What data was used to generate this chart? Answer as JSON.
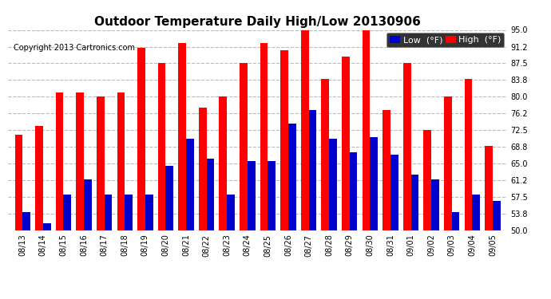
{
  "title": "Outdoor Temperature Daily High/Low 20130906",
  "copyright": "Copyright 2013 Cartronics.com",
  "legend_low": "Low  (°F)",
  "legend_high": "High  (°F)",
  "dates": [
    "08/13",
    "08/14",
    "08/15",
    "08/16",
    "08/17",
    "08/18",
    "08/19",
    "08/20",
    "08/21",
    "08/22",
    "08/23",
    "08/24",
    "08/25",
    "08/26",
    "08/27",
    "08/28",
    "08/29",
    "08/30",
    "08/31",
    "09/01",
    "09/02",
    "09/03",
    "09/04",
    "09/05"
  ],
  "highs": [
    71.5,
    73.5,
    81.0,
    81.0,
    80.0,
    81.0,
    91.0,
    87.5,
    92.0,
    77.5,
    80.0,
    87.5,
    92.0,
    90.5,
    95.0,
    84.0,
    89.0,
    95.0,
    77.0,
    87.5,
    72.5,
    80.0,
    84.0,
    69.0
  ],
  "lows": [
    54.0,
    51.5,
    58.0,
    61.5,
    58.0,
    58.0,
    58.0,
    64.5,
    70.5,
    66.0,
    58.0,
    65.5,
    65.5,
    74.0,
    77.0,
    70.5,
    67.5,
    71.0,
    67.0,
    62.5,
    61.5,
    54.0,
    58.0,
    56.5
  ],
  "ylim": [
    50.0,
    95.0
  ],
  "yticks": [
    50.0,
    53.8,
    57.5,
    61.2,
    65.0,
    68.8,
    72.5,
    76.2,
    80.0,
    83.8,
    87.5,
    91.2,
    95.0
  ],
  "bar_width": 0.38,
  "high_color": "#ff0000",
  "low_color": "#0000cc",
  "background_color": "#ffffff",
  "grid_color": "#bbbbbb",
  "title_fontsize": 11,
  "tick_fontsize": 7,
  "legend_fontsize": 8,
  "fig_width": 6.9,
  "fig_height": 3.75,
  "dpi": 100
}
